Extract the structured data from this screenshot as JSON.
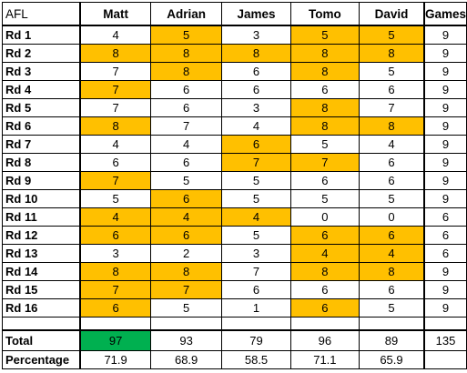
{
  "colors": {
    "highlight": "#ffc000",
    "best_total": "#00b050"
  },
  "header": {
    "corner": "AFL",
    "players": [
      "Matt",
      "Adrian",
      "James",
      "Tomo",
      "David"
    ],
    "games": "Games"
  },
  "rounds": [
    {
      "label": "Rd 1",
      "scores": [
        "4",
        "5",
        "3",
        "5",
        "5"
      ],
      "highlight": [
        false,
        true,
        false,
        true,
        true
      ],
      "games": "9"
    },
    {
      "label": "Rd 2",
      "scores": [
        "8",
        "8",
        "8",
        "8",
        "8"
      ],
      "highlight": [
        true,
        true,
        true,
        true,
        true
      ],
      "games": "9"
    },
    {
      "label": "Rd 3",
      "scores": [
        "7",
        "8",
        "6",
        "8",
        "5"
      ],
      "highlight": [
        false,
        true,
        false,
        true,
        false
      ],
      "games": "9"
    },
    {
      "label": "Rd 4",
      "scores": [
        "7",
        "6",
        "6",
        "6",
        "6"
      ],
      "highlight": [
        true,
        false,
        false,
        false,
        false
      ],
      "games": "9"
    },
    {
      "label": "Rd 5",
      "scores": [
        "7",
        "6",
        "3",
        "8",
        "7"
      ],
      "highlight": [
        false,
        false,
        false,
        true,
        false
      ],
      "games": "9"
    },
    {
      "label": "Rd 6",
      "scores": [
        "8",
        "7",
        "4",
        "8",
        "8"
      ],
      "highlight": [
        true,
        false,
        false,
        true,
        true
      ],
      "games": "9"
    },
    {
      "label": "Rd 7",
      "scores": [
        "4",
        "4",
        "6",
        "5",
        "4"
      ],
      "highlight": [
        false,
        false,
        true,
        false,
        false
      ],
      "games": "9"
    },
    {
      "label": "Rd 8",
      "scores": [
        "6",
        "6",
        "7",
        "7",
        "6"
      ],
      "highlight": [
        false,
        false,
        true,
        true,
        false
      ],
      "games": "9"
    },
    {
      "label": "Rd 9",
      "scores": [
        "7",
        "5",
        "5",
        "6",
        "6"
      ],
      "highlight": [
        true,
        false,
        false,
        false,
        false
      ],
      "games": "9"
    },
    {
      "label": "Rd 10",
      "scores": [
        "5",
        "6",
        "5",
        "5",
        "5"
      ],
      "highlight": [
        false,
        true,
        false,
        false,
        false
      ],
      "games": "9"
    },
    {
      "label": "Rd 11",
      "scores": [
        "4",
        "4",
        "4",
        "0",
        "0"
      ],
      "highlight": [
        true,
        true,
        true,
        false,
        false
      ],
      "games": "6"
    },
    {
      "label": "Rd 12",
      "scores": [
        "6",
        "6",
        "5",
        "6",
        "6"
      ],
      "highlight": [
        true,
        true,
        false,
        true,
        true
      ],
      "games": "6"
    },
    {
      "label": "Rd 13",
      "scores": [
        "3",
        "2",
        "3",
        "4",
        "4"
      ],
      "highlight": [
        false,
        false,
        false,
        true,
        true
      ],
      "games": "6"
    },
    {
      "label": "Rd 14",
      "scores": [
        "8",
        "8",
        "7",
        "8",
        "8"
      ],
      "highlight": [
        true,
        true,
        false,
        true,
        true
      ],
      "games": "9"
    },
    {
      "label": "Rd 15",
      "scores": [
        "7",
        "7",
        "6",
        "6",
        "6"
      ],
      "highlight": [
        true,
        true,
        false,
        false,
        false
      ],
      "games": "9"
    },
    {
      "label": "Rd 16",
      "scores": [
        "6",
        "5",
        "1",
        "6",
        "5"
      ],
      "highlight": [
        true,
        false,
        false,
        true,
        false
      ],
      "games": "9"
    }
  ],
  "total": {
    "label": "Total",
    "values": [
      "97",
      "93",
      "79",
      "96",
      "89"
    ],
    "best_index": 0,
    "games": "135"
  },
  "percentage": {
    "label": "Percentage",
    "values": [
      "71.9",
      "68.9",
      "58.5",
      "71.1",
      "65.9"
    ],
    "games": ""
  }
}
